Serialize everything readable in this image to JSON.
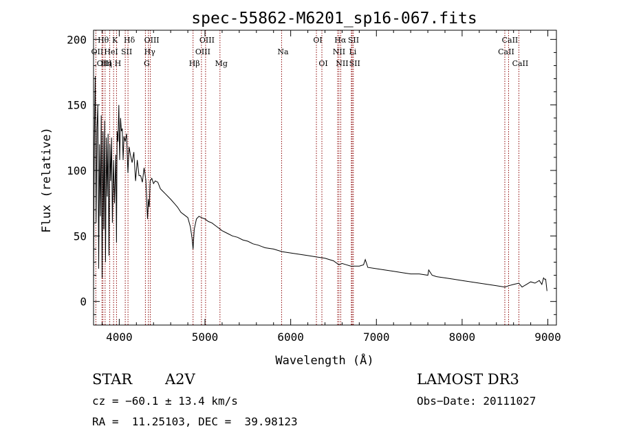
{
  "chart_data": {
    "type": "line",
    "title": "spec-55862-M6201_sp16-067.fits",
    "xlabel": "Wavelength (Å)",
    "ylabel": "Flux (relative)",
    "xlim": [
      3700,
      9100
    ],
    "ylim": [
      -18,
      207
    ],
    "x_ticks": [
      4000,
      5000,
      6000,
      7000,
      8000,
      9000
    ],
    "y_ticks": [
      0,
      50,
      100,
      150,
      200
    ],
    "grid": false,
    "line_color": "#000000",
    "marker_color": "#8b0000",
    "series": [
      {
        "name": "flux",
        "x": [
          3700,
          3710,
          3720,
          3730,
          3740,
          3750,
          3760,
          3770,
          3780,
          3790,
          3800,
          3810,
          3820,
          3830,
          3840,
          3850,
          3860,
          3870,
          3880,
          3890,
          3900,
          3910,
          3920,
          3933,
          3945,
          3960,
          3968,
          3975,
          3985,
          3995,
          4005,
          4015,
          4025,
          4035,
          4045,
          4055,
          4070,
          4085,
          4101,
          4115,
          4130,
          4150,
          4170,
          4190,
          4210,
          4230,
          4250,
          4270,
          4290,
          4310,
          4330,
          4340,
          4350,
          4360,
          4380,
          4400,
          4420,
          4450,
          4480,
          4510,
          4540,
          4570,
          4600,
          4640,
          4680,
          4720,
          4760,
          4800,
          4830,
          4850,
          4861,
          4875,
          4900,
          4930,
          4960,
          5000,
          5040,
          5080,
          5120,
          5160,
          5200,
          5260,
          5320,
          5380,
          5440,
          5500,
          5560,
          5620,
          5700,
          5800,
          5900,
          6000,
          6100,
          6200,
          6300,
          6400,
          6500,
          6563,
          6600,
          6650,
          6700,
          6800,
          6850,
          6870,
          6900,
          7000,
          7100,
          7200,
          7300,
          7400,
          7500,
          7600,
          7610,
          7650,
          7700,
          7800,
          7900,
          8000,
          8100,
          8200,
          8300,
          8400,
          8498,
          8542,
          8600,
          8662,
          8700,
          8750,
          8800,
          8850,
          8900,
          8930,
          8950,
          8960,
          8975,
          8990
        ],
        "y": [
          10,
          125,
          172,
          60,
          132,
          150,
          25,
          120,
          65,
          142,
          18,
          130,
          55,
          138,
          30,
          125,
          80,
          128,
          35,
          120,
          92,
          125,
          60,
          108,
          75,
          112,
          45,
          130,
          122,
          150,
          108,
          140,
          130,
          132,
          108,
          126,
          122,
          128,
          98,
          118,
          112,
          106,
          114,
          92,
          108,
          96,
          96,
          91,
          102,
          93,
          63,
          78,
          72,
          92,
          94,
          90,
          92,
          91,
          86,
          84,
          82,
          80,
          78,
          75,
          72,
          68,
          66,
          64,
          57,
          48,
          40,
          55,
          63,
          65,
          64,
          63,
          61,
          60,
          58,
          56,
          54,
          52,
          50,
          49,
          47,
          46,
          44,
          43,
          41,
          40,
          38,
          37,
          36,
          35,
          34,
          33,
          31,
          28,
          29,
          28,
          27,
          27,
          28,
          32,
          26,
          25,
          24,
          23,
          22,
          21,
          21,
          20,
          24,
          20,
          19,
          18,
          17,
          16,
          15,
          14,
          13,
          12,
          11,
          12,
          13,
          14,
          11,
          13,
          15,
          14,
          16,
          13,
          18,
          17,
          17,
          8
        ]
      }
    ],
    "lines": [
      {
        "label": "OII",
        "wave": 3727,
        "row": 1
      },
      {
        "label": "Hθ",
        "wave": 3798,
        "row": 0
      },
      {
        "label": "OIII",
        "wave": 3810,
        "row": 2
      },
      {
        "label": "Hη",
        "wave": 3835,
        "row": 2
      },
      {
        "label": "HeI",
        "wave": 3889,
        "row": 1
      },
      {
        "label": "K",
        "wave": 3934,
        "row": 0
      },
      {
        "label": "H",
        "wave": 3968,
        "row": 2
      },
      {
        "label": "SII",
        "wave": 4070,
        "row": 1
      },
      {
        "label": "Hδ",
        "wave": 4102,
        "row": 0
      },
      {
        "label": "G",
        "wave": 4305,
        "row": 2
      },
      {
        "label": "Hγ",
        "wave": 4340,
        "row": 1
      },
      {
        "label": "OIII",
        "wave": 4363,
        "row": 0
      },
      {
        "label": "Hβ",
        "wave": 4861,
        "row": 2
      },
      {
        "label": "OIII",
        "wave": 4959,
        "row": 1
      },
      {
        "label": "OIII",
        "wave": 5007,
        "row": 0
      },
      {
        "label": "Mg",
        "wave": 5175,
        "row": 2
      },
      {
        "label": "Na",
        "wave": 5894,
        "row": 1
      },
      {
        "label": "OI",
        "wave": 6300,
        "row": 0
      },
      {
        "label": "OI",
        "wave": 6364,
        "row": 2
      },
      {
        "label": "NII",
        "wave": 6548,
        "row": 1
      },
      {
        "label": "Hα",
        "wave": 6563,
        "row": 0
      },
      {
        "label": "NII",
        "wave": 6584,
        "row": 2
      },
      {
        "label": "Li",
        "wave": 6708,
        "row": 1
      },
      {
        "label": "SII",
        "wave": 6717,
        "row": 0
      },
      {
        "label": "SII",
        "wave": 6731,
        "row": 2
      },
      {
        "label": "CaII",
        "wave": 8498,
        "row": 1
      },
      {
        "label": "CaII",
        "wave": 8542,
        "row": 0
      },
      {
        "label": "CaII",
        "wave": 8662,
        "row": 2
      }
    ]
  },
  "info": {
    "object_class": "STAR",
    "subclass": "A2V",
    "survey": "LAMOST DR3",
    "redshift": "cz = −60.1 ± 13.4 km/s",
    "obs_date": "Obs−Date: 20111027",
    "coords": "RA =  11.25103, DEC =  39.98123"
  }
}
